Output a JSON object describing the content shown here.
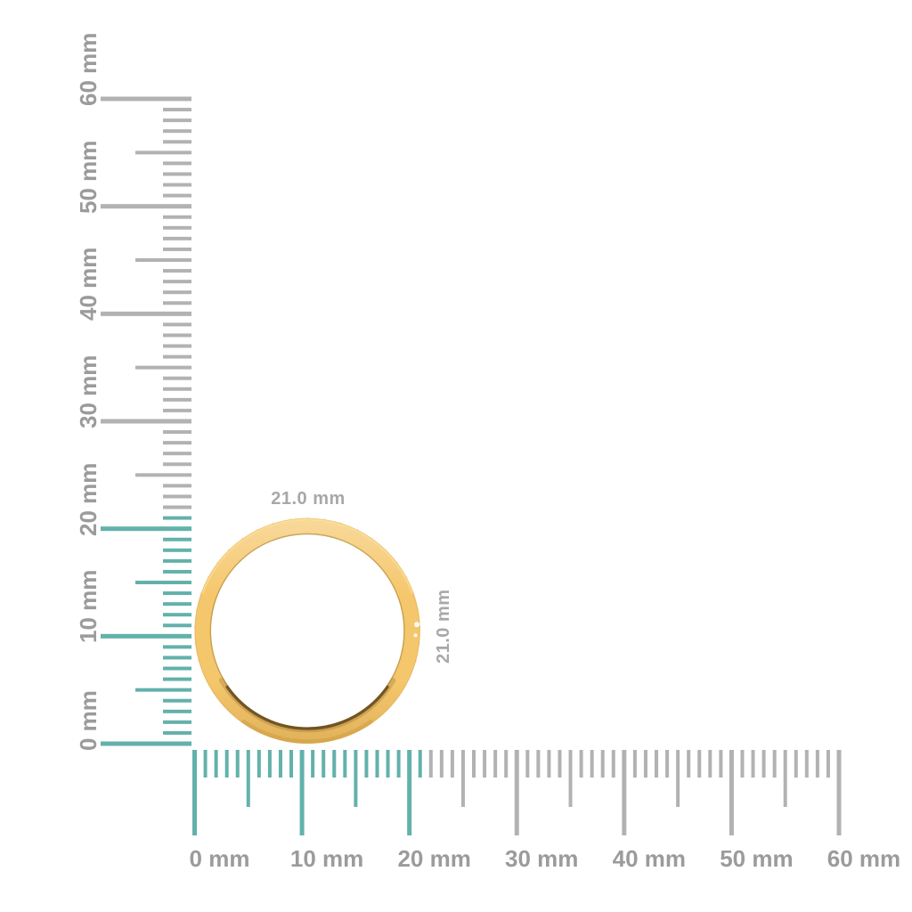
{
  "figure": {
    "background": "#ffffff",
    "object": {
      "name": "gold-diamond-band-ring",
      "view": "side-profile"
    },
    "dimensions": {
      "width": "21.0 mm",
      "height": "21.0 mm",
      "width_mm": 21.0,
      "height_mm": 21.0
    },
    "rulers": {
      "unit": "mm",
      "vertical": {
        "min_mm": 0,
        "max_mm": 60,
        "minor_step_mm": 1,
        "medium_step_mm": 5,
        "major_step_mm": 10,
        "labels": [
          "0 mm",
          "10 mm",
          "20 mm",
          "30 mm",
          "40 mm",
          "50 mm",
          "60 mm"
        ],
        "highlighted_range_mm": [
          0,
          21
        ]
      },
      "horizontal": {
        "min_mm": 0,
        "max_mm": 60,
        "minor_step_mm": 1,
        "medium_step_mm": 5,
        "major_step_mm": 10,
        "labels": [
          "0 mm",
          "10 mm",
          "20 mm",
          "30 mm",
          "40 mm",
          "50 mm",
          "60 mm"
        ],
        "highlighted_range_mm": [
          0,
          21
        ]
      }
    },
    "colors": {
      "highlight_teal": "#63b1ab",
      "tick_gray": "#b2b2b2",
      "ruler_label_gray": "#9b9b9b",
      "dimension_label_gray": "#a8a8a8",
      "ring_gold": "#f5c76c",
      "ring_gold_edge": "#e3b257",
      "ring_inner_shadow": "#5c441b",
      "diamond_white": "#fffaf0"
    }
  }
}
